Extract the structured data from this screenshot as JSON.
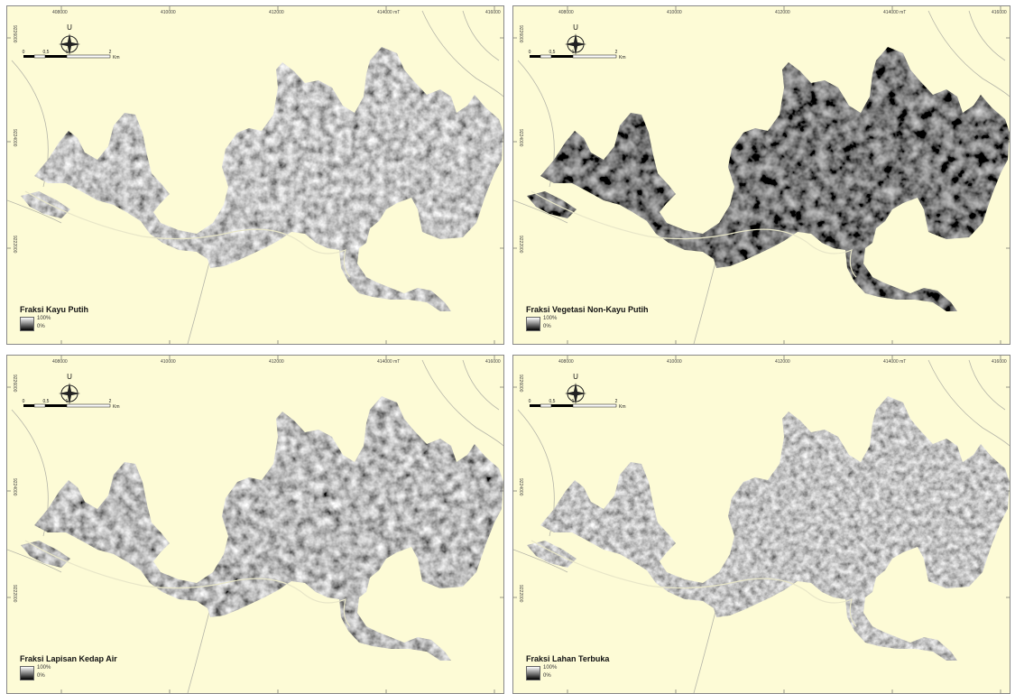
{
  "legend": {
    "max_label": "100%",
    "min_label": "0%"
  },
  "compass": {
    "north_label": "U"
  },
  "scalebar": {
    "labels": [
      "0",
      "0,5",
      "1",
      "2"
    ],
    "unit": "Km"
  },
  "grid": {
    "x_labels": [
      "408000",
      "410000",
      "412000",
      "414000 mT",
      "416000"
    ],
    "y_labels": [
      "9226000",
      "9224000",
      "9222000"
    ]
  },
  "panels": [
    {
      "id": "kayu-putih",
      "title": "Fraksi Kayu Putih"
    },
    {
      "id": "vegetasi-non-kayu-putih",
      "title": "Fraksi Vegetasi Non-Kayu Putih"
    },
    {
      "id": "lapisan-kedap-air",
      "title": "Fraksi Lapisan Kedap Air"
    },
    {
      "id": "lahan-terbuka",
      "title": "Fraksi Lahan Terbuka"
    }
  ],
  "colors": {
    "background": "#fdfbd6",
    "road": "#b5b5a8",
    "river": "#e8e6c8"
  }
}
